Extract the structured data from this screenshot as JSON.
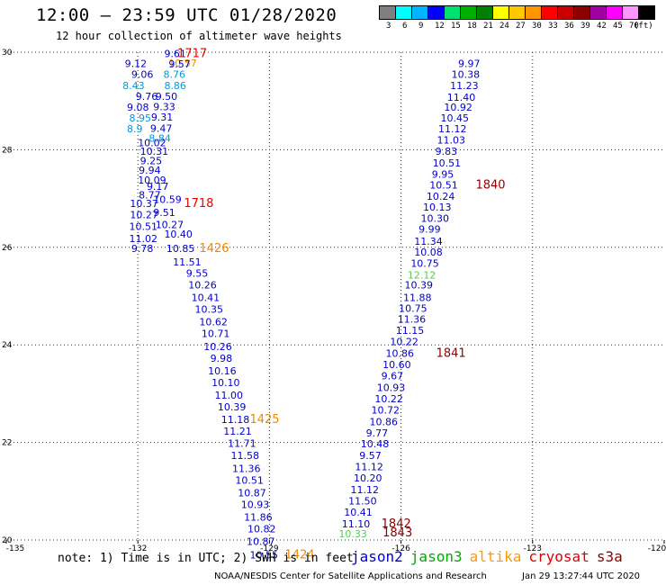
{
  "header": {
    "title": "12:00 — 23:59 UTC 01/28/2020",
    "subtitle": "12 hour collection of altimeter wave heights"
  },
  "colorbar": {
    "unit_label": "(ft)",
    "swatches": [
      {
        "color": "#808080",
        "label": "3"
      },
      {
        "color": "#00ffff",
        "label": "6"
      },
      {
        "color": "#00b4ff",
        "label": "9"
      },
      {
        "color": "#0000ff",
        "label": "12"
      },
      {
        "color": "#00e070",
        "label": "15"
      },
      {
        "color": "#00b000",
        "label": "18"
      },
      {
        "color": "#008000",
        "label": "21"
      },
      {
        "color": "#ffff00",
        "label": "24"
      },
      {
        "color": "#ffc800",
        "label": "27"
      },
      {
        "color": "#ff9600",
        "label": "30"
      },
      {
        "color": "#ff0000",
        "label": "33"
      },
      {
        "color": "#c80000",
        "label": "36"
      },
      {
        "color": "#8b0000",
        "label": "39"
      },
      {
        "color": "#a000a0",
        "label": "42"
      },
      {
        "color": "#ff00ff",
        "label": "45"
      },
      {
        "color": "#ff96ff",
        "label": "70"
      },
      {
        "color": "#000000",
        "label": ""
      }
    ]
  },
  "footer": {
    "note": "note: 1) Time is in UTC; 2) SWH is in feet",
    "credit": "NOAA/NESDIS Center for Satellite Applications and Research",
    "timestamp": "Jan 29 13:27:44 UTC 2020",
    "satellites": [
      {
        "name": "jason2",
        "color": "#0000cc"
      },
      {
        "name": "jason3",
        "color": "#00aa00"
      },
      {
        "name": "altika",
        "color": "#ff9900"
      },
      {
        "name": "cryosat",
        "color": "#dd0000"
      },
      {
        "name": "s3a",
        "color": "#8b0000"
      }
    ]
  },
  "chart_data": {
    "type": "scatter",
    "xlim": [
      -135,
      -120
    ],
    "ylim": [
      20,
      30
    ],
    "x_ticks": [
      "-135",
      "-132",
      "-129",
      "-126",
      "-123",
      "-120"
    ],
    "y_ticks": [
      "20",
      "22",
      "24",
      "26",
      "28",
      "30"
    ],
    "grid": true,
    "colors": {
      "dark_blue": "#0000cc",
      "light_blue": "#0099dd",
      "green": "#55cc55",
      "orange": "#ee8800",
      "red": "#ee0000",
      "dark_red": "#8b0000"
    },
    "labels": [
      {
        "x": -131.4,
        "y": 29.97,
        "text": "9.61",
        "color": "dark_blue"
      },
      {
        "x": -131.3,
        "y": 29.78,
        "text": "10.57",
        "color": "orange"
      },
      {
        "x": -131.3,
        "y": 29.76,
        "text": "9.57",
        "color": "dark_blue"
      },
      {
        "x": -132.3,
        "y": 29.77,
        "text": "9.12",
        "color": "dark_blue"
      },
      {
        "x": -132.15,
        "y": 29.55,
        "text": "9.06",
        "color": "dark_blue"
      },
      {
        "x": -131.42,
        "y": 29.55,
        "text": "8.76",
        "color": "light_blue"
      },
      {
        "x": -132.35,
        "y": 29.32,
        "text": "8.43",
        "color": "light_blue"
      },
      {
        "x": -131.4,
        "y": 29.32,
        "text": "8.86",
        "color": "light_blue"
      },
      {
        "x": -132.05,
        "y": 29.1,
        "text": "9.76",
        "color": "dark_blue"
      },
      {
        "x": -131.6,
        "y": 29.1,
        "text": "9.50",
        "color": "dark_blue"
      },
      {
        "x": -132.25,
        "y": 28.87,
        "text": "9.08",
        "color": "dark_blue"
      },
      {
        "x": -131.65,
        "y": 28.88,
        "text": "9.33",
        "color": "dark_blue"
      },
      {
        "x": -132.2,
        "y": 28.65,
        "text": "8.95",
        "color": "light_blue"
      },
      {
        "x": -131.7,
        "y": 28.67,
        "text": "9.31",
        "color": "dark_blue"
      },
      {
        "x": -132.25,
        "y": 28.43,
        "text": "8.9",
        "color": "light_blue"
      },
      {
        "x": -131.72,
        "y": 28.44,
        "text": "9.47",
        "color": "dark_blue"
      },
      {
        "x": -131.75,
        "y": 28.24,
        "text": "8.84",
        "color": "light_blue"
      },
      {
        "x": -132.0,
        "y": 28.15,
        "text": "10.02",
        "color": "dark_blue"
      },
      {
        "x": -131.95,
        "y": 27.97,
        "text": "10.31",
        "color": "dark_blue"
      },
      {
        "x": -131.95,
        "y": 27.78,
        "text": "9.25",
        "color": "dark_blue"
      },
      {
        "x": -131.98,
        "y": 27.58,
        "text": "9.94",
        "color": "dark_blue"
      },
      {
        "x": -132.0,
        "y": 27.38,
        "text": "10.09",
        "color": "dark_blue"
      },
      {
        "x": -131.8,
        "y": 27.25,
        "text": "9.17",
        "color": "dark_blue"
      },
      {
        "x": -131.98,
        "y": 27.08,
        "text": "8.77",
        "color": "dark_blue"
      },
      {
        "x": -131.65,
        "y": 26.98,
        "text": "10.59",
        "color": "dark_blue"
      },
      {
        "x": -132.18,
        "y": 26.9,
        "text": "10.37",
        "color": "dark_blue"
      },
      {
        "x": -131.65,
        "y": 26.72,
        "text": "9.51",
        "color": "dark_blue"
      },
      {
        "x": -132.18,
        "y": 26.67,
        "text": "10.27",
        "color": "dark_blue"
      },
      {
        "x": -131.6,
        "y": 26.47,
        "text": "10.27",
        "color": "dark_blue"
      },
      {
        "x": -132.2,
        "y": 26.43,
        "text": "10.51",
        "color": "dark_blue"
      },
      {
        "x": -131.4,
        "y": 26.27,
        "text": "10.40",
        "color": "dark_blue"
      },
      {
        "x": -132.2,
        "y": 26.18,
        "text": "11.02",
        "color": "dark_blue"
      },
      {
        "x": -132.15,
        "y": 25.98,
        "text": "9.78",
        "color": "dark_blue"
      },
      {
        "x": -131.35,
        "y": 25.98,
        "text": "10.85",
        "color": "dark_blue"
      },
      {
        "x": -131.2,
        "y": 25.7,
        "text": "11.51",
        "color": "dark_blue"
      },
      {
        "x": -130.9,
        "y": 25.47,
        "text": "9.55",
        "color": "dark_blue"
      },
      {
        "x": -130.85,
        "y": 25.23,
        "text": "10.26",
        "color": "dark_blue"
      },
      {
        "x": -130.78,
        "y": 24.97,
        "text": "10.41",
        "color": "dark_blue"
      },
      {
        "x": -130.7,
        "y": 24.73,
        "text": "10.35",
        "color": "dark_blue"
      },
      {
        "x": -130.6,
        "y": 24.47,
        "text": "10.62",
        "color": "dark_blue"
      },
      {
        "x": -130.55,
        "y": 24.23,
        "text": "10.71",
        "color": "dark_blue"
      },
      {
        "x": -130.5,
        "y": 23.97,
        "text": "10.26",
        "color": "dark_blue"
      },
      {
        "x": -130.35,
        "y": 23.73,
        "text": "9.98",
        "color": "dark_blue"
      },
      {
        "x": -130.4,
        "y": 23.47,
        "text": "10.16",
        "color": "dark_blue"
      },
      {
        "x": -130.32,
        "y": 23.23,
        "text": "10.10",
        "color": "dark_blue"
      },
      {
        "x": -130.25,
        "y": 22.97,
        "text": "11.00",
        "color": "dark_blue"
      },
      {
        "x": -130.18,
        "y": 22.73,
        "text": "10.39",
        "color": "dark_blue"
      },
      {
        "x": -130.1,
        "y": 22.47,
        "text": "11.18",
        "color": "dark_blue"
      },
      {
        "x": -130.05,
        "y": 22.23,
        "text": "11.21",
        "color": "dark_blue"
      },
      {
        "x": -129.95,
        "y": 21.98,
        "text": "11.71",
        "color": "dark_blue"
      },
      {
        "x": -129.88,
        "y": 21.73,
        "text": "11.58",
        "color": "dark_blue"
      },
      {
        "x": -129.85,
        "y": 21.47,
        "text": "11.36",
        "color": "dark_blue"
      },
      {
        "x": -129.78,
        "y": 21.23,
        "text": "10.51",
        "color": "dark_blue"
      },
      {
        "x": -129.72,
        "y": 20.97,
        "text": "10.87",
        "color": "dark_blue"
      },
      {
        "x": -129.65,
        "y": 20.73,
        "text": "10.93",
        "color": "dark_blue"
      },
      {
        "x": -129.58,
        "y": 20.47,
        "text": "11.86",
        "color": "dark_blue"
      },
      {
        "x": -129.5,
        "y": 20.23,
        "text": "10.82",
        "color": "dark_blue"
      },
      {
        "x": -129.52,
        "y": 19.97,
        "text": "10.87",
        "color": "dark_blue"
      },
      {
        "x": -129.45,
        "y": 19.7,
        "text": "10.55",
        "color": "dark_blue"
      },
      {
        "x": -131.1,
        "y": 29.97,
        "text": "1717",
        "color": "red"
      },
      {
        "x": -130.95,
        "y": 26.9,
        "text": "1718",
        "color": "red"
      },
      {
        "x": -130.6,
        "y": 25.98,
        "text": "1426",
        "color": "orange"
      },
      {
        "x": -129.45,
        "y": 22.47,
        "text": "1425",
        "color": "orange"
      },
      {
        "x": -128.65,
        "y": 19.7,
        "text": "1424",
        "color": "orange"
      },
      {
        "x": -124.7,
        "y": 29.77,
        "text": "9.97",
        "color": "dark_blue"
      },
      {
        "x": -124.85,
        "y": 29.55,
        "text": "10.38",
        "color": "dark_blue"
      },
      {
        "x": -124.88,
        "y": 29.32,
        "text": "11.23",
        "color": "dark_blue"
      },
      {
        "x": -124.95,
        "y": 29.08,
        "text": "11.40",
        "color": "dark_blue"
      },
      {
        "x": -125.02,
        "y": 28.87,
        "text": "10.92",
        "color": "dark_blue"
      },
      {
        "x": -125.1,
        "y": 28.65,
        "text": "10.45",
        "color": "dark_blue"
      },
      {
        "x": -125.15,
        "y": 28.43,
        "text": "11.12",
        "color": "dark_blue"
      },
      {
        "x": -125.18,
        "y": 28.2,
        "text": "11.03",
        "color": "dark_blue"
      },
      {
        "x": -125.22,
        "y": 27.97,
        "text": "9.83",
        "color": "dark_blue"
      },
      {
        "x": -125.28,
        "y": 27.73,
        "text": "10.51",
        "color": "dark_blue"
      },
      {
        "x": -125.3,
        "y": 27.5,
        "text": "9.95",
        "color": "dark_blue"
      },
      {
        "x": -125.35,
        "y": 27.28,
        "text": "10.51",
        "color": "dark_blue"
      },
      {
        "x": -125.42,
        "y": 27.05,
        "text": "10.24",
        "color": "dark_blue"
      },
      {
        "x": -125.5,
        "y": 26.83,
        "text": "10.13",
        "color": "dark_blue"
      },
      {
        "x": -125.55,
        "y": 26.6,
        "text": "10.30",
        "color": "dark_blue"
      },
      {
        "x": -125.6,
        "y": 26.37,
        "text": "9.99",
        "color": "dark_blue"
      },
      {
        "x": -125.7,
        "y": 26.13,
        "text": "11.34",
        "color": "dark_blue"
      },
      {
        "x": -125.7,
        "y": 25.9,
        "text": "10.08",
        "color": "dark_blue"
      },
      {
        "x": -125.78,
        "y": 25.67,
        "text": "10.75",
        "color": "dark_blue"
      },
      {
        "x": -125.85,
        "y": 25.43,
        "text": "12.12",
        "color": "green"
      },
      {
        "x": -125.92,
        "y": 25.23,
        "text": "10.39",
        "color": "dark_blue"
      },
      {
        "x": -125.95,
        "y": 24.97,
        "text": "11.88",
        "color": "dark_blue"
      },
      {
        "x": -126.05,
        "y": 24.75,
        "text": "10.75",
        "color": "dark_blue"
      },
      {
        "x": -126.08,
        "y": 24.53,
        "text": "11.36",
        "color": "dark_blue"
      },
      {
        "x": -126.12,
        "y": 24.3,
        "text": "11.15",
        "color": "dark_blue"
      },
      {
        "x": -126.25,
        "y": 24.07,
        "text": "10.22",
        "color": "dark_blue"
      },
      {
        "x": -126.35,
        "y": 23.83,
        "text": "10.86",
        "color": "dark_blue"
      },
      {
        "x": -126.42,
        "y": 23.6,
        "text": "10.60",
        "color": "dark_blue"
      },
      {
        "x": -126.45,
        "y": 23.37,
        "text": "9.67",
        "color": "dark_blue"
      },
      {
        "x": -126.55,
        "y": 23.13,
        "text": "10.93",
        "color": "dark_blue"
      },
      {
        "x": -126.6,
        "y": 22.9,
        "text": "10.22",
        "color": "dark_blue"
      },
      {
        "x": -126.68,
        "y": 22.67,
        "text": "10.72",
        "color": "dark_blue"
      },
      {
        "x": -126.72,
        "y": 22.43,
        "text": "10.86",
        "color": "dark_blue"
      },
      {
        "x": -126.8,
        "y": 22.2,
        "text": "9.77",
        "color": "dark_blue"
      },
      {
        "x": -126.92,
        "y": 21.97,
        "text": "10.48",
        "color": "dark_blue"
      },
      {
        "x": -126.95,
        "y": 21.73,
        "text": "9.57",
        "color": "dark_blue"
      },
      {
        "x": -127.05,
        "y": 21.5,
        "text": "11.12",
        "color": "dark_blue"
      },
      {
        "x": -127.08,
        "y": 21.27,
        "text": "10.20",
        "color": "dark_blue"
      },
      {
        "x": -127.15,
        "y": 21.03,
        "text": "11.12",
        "color": "dark_blue"
      },
      {
        "x": -127.2,
        "y": 20.8,
        "text": "11.50",
        "color": "dark_blue"
      },
      {
        "x": -127.3,
        "y": 20.57,
        "text": "10.41",
        "color": "dark_blue"
      },
      {
        "x": -127.35,
        "y": 20.33,
        "text": "11.10",
        "color": "dark_blue"
      },
      {
        "x": -127.42,
        "y": 20.13,
        "text": "10.33",
        "color": "green"
      },
      {
        "x": -124.3,
        "y": 27.28,
        "text": "1840",
        "color": "dark_red"
      },
      {
        "x": -125.2,
        "y": 23.83,
        "text": "1841",
        "color": "dark_red"
      },
      {
        "x": -126.45,
        "y": 20.33,
        "text": "1842",
        "color": "dark_red"
      },
      {
        "x": -126.42,
        "y": 20.15,
        "text": "1843",
        "color": "dark_red"
      }
    ]
  }
}
